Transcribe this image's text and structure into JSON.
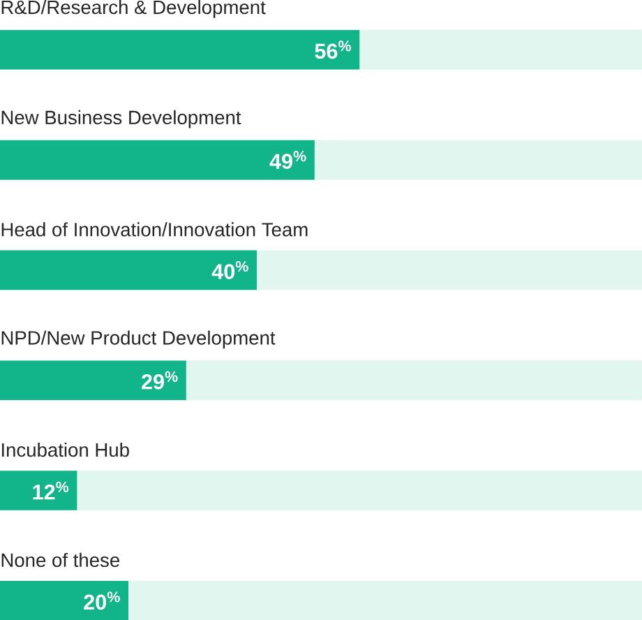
{
  "chart_data": {
    "type": "bar",
    "orientation": "horizontal",
    "categories": [
      "R&D/Research & Development",
      "New Business Development",
      "Head of Innovation/Innovation Team",
      "NPD/New Product Development",
      "Incubation Hub",
      "None of these"
    ],
    "values": [
      56,
      49,
      40,
      29,
      12,
      20
    ],
    "color": "#12b48a",
    "value_labels": [
      "56$^{%}$",
      "49$^{%}$",
      "40$^{%}$",
      "29$^{%}$",
      "12$^{%}$",
      "20$^{%}$"
    ],
    "xlim": [
      0,
      100
    ],
    "bands": [
      {
        "axis": "x",
        "from": 0,
        "to": 100,
        "color": "#e1f6ef"
      }
    ]
  }
}
